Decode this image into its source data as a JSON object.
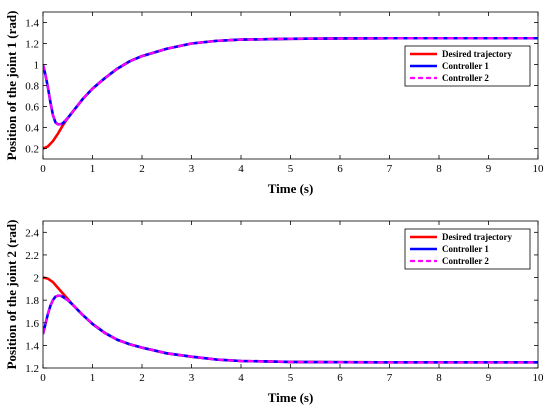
{
  "chart_data": [
    {
      "type": "line",
      "xlabel": "Time (s)",
      "ylabel": "Position of the joint 1 (rad)",
      "xlim": [
        0,
        10
      ],
      "ylim": [
        0.1,
        1.5
      ],
      "xticks": [
        0,
        1,
        2,
        3,
        4,
        5,
        6,
        7,
        8,
        9,
        10
      ],
      "yticks": [
        0.2,
        0.4,
        0.6,
        0.8,
        1,
        1.2,
        1.4
      ],
      "grid": false,
      "legend_position": "top-right",
      "series": [
        {
          "name": "Desired trajectory",
          "color": "#ff0000",
          "style": "solid",
          "x": [
            0,
            0.1,
            0.2,
            0.3,
            0.4,
            0.5,
            0.6,
            0.8,
            1.0,
            1.25,
            1.5,
            1.75,
            2.0,
            2.5,
            3.0,
            3.5,
            4.0,
            5.0,
            6.0,
            7.0,
            8.0,
            10.0
          ],
          "y": [
            0.2,
            0.22,
            0.27,
            0.34,
            0.42,
            0.49,
            0.55,
            0.67,
            0.77,
            0.87,
            0.96,
            1.03,
            1.08,
            1.15,
            1.2,
            1.225,
            1.237,
            1.245,
            1.248,
            1.25,
            1.25,
            1.25
          ]
        },
        {
          "name": "Controller 1",
          "color": "#0000ff",
          "style": "solid",
          "x": [
            0,
            0.05,
            0.1,
            0.15,
            0.2,
            0.25,
            0.3,
            0.35,
            0.4,
            0.5,
            0.6,
            0.8,
            1.0,
            1.25,
            1.5,
            1.75,
            2.0,
            2.5,
            3.0,
            3.5,
            4.0,
            5.0,
            6.0,
            7.0,
            8.0,
            10.0
          ],
          "y": [
            1.0,
            0.9,
            0.78,
            0.64,
            0.52,
            0.45,
            0.43,
            0.43,
            0.44,
            0.49,
            0.55,
            0.67,
            0.77,
            0.87,
            0.96,
            1.03,
            1.08,
            1.15,
            1.2,
            1.225,
            1.237,
            1.245,
            1.248,
            1.25,
            1.25,
            1.25
          ]
        },
        {
          "name": "Controller 2",
          "color": "#ff00ff",
          "style": "dashed",
          "x": [
            0,
            0.05,
            0.1,
            0.15,
            0.2,
            0.25,
            0.3,
            0.35,
            0.4,
            0.5,
            0.6,
            0.8,
            1.0,
            1.25,
            1.5,
            1.75,
            2.0,
            2.5,
            3.0,
            3.5,
            4.0,
            5.0,
            6.0,
            7.0,
            8.0,
            10.0
          ],
          "y": [
            1.0,
            0.9,
            0.78,
            0.64,
            0.52,
            0.45,
            0.43,
            0.43,
            0.44,
            0.49,
            0.55,
            0.67,
            0.77,
            0.87,
            0.96,
            1.03,
            1.08,
            1.15,
            1.2,
            1.225,
            1.237,
            1.245,
            1.248,
            1.25,
            1.25,
            1.25
          ]
        }
      ]
    },
    {
      "type": "line",
      "xlabel": "Time (s)",
      "ylabel": "Position of the joint 2 (rad)",
      "xlim": [
        0,
        10
      ],
      "ylim": [
        1.2,
        2.5
      ],
      "xticks": [
        0,
        1,
        2,
        3,
        4,
        5,
        6,
        7,
        8,
        9,
        10
      ],
      "yticks": [
        1.2,
        1.4,
        1.6,
        1.8,
        2,
        2.2,
        2.4
      ],
      "grid": false,
      "legend_position": "top-right",
      "series": [
        {
          "name": "Desired trajectory",
          "color": "#ff0000",
          "style": "solid",
          "x": [
            0,
            0.1,
            0.2,
            0.3,
            0.4,
            0.5,
            0.6,
            0.8,
            1.0,
            1.25,
            1.5,
            1.75,
            2.0,
            2.5,
            3.0,
            3.5,
            4.0,
            5.0,
            6.0,
            7.0,
            8.0,
            10.0
          ],
          "y": [
            2.0,
            1.99,
            1.96,
            1.91,
            1.86,
            1.81,
            1.76,
            1.67,
            1.59,
            1.51,
            1.45,
            1.41,
            1.38,
            1.33,
            1.3,
            1.275,
            1.262,
            1.254,
            1.251,
            1.25,
            1.25,
            1.25
          ]
        },
        {
          "name": "Controller 1",
          "color": "#0000ff",
          "style": "solid",
          "x": [
            0,
            0.05,
            0.1,
            0.15,
            0.2,
            0.25,
            0.3,
            0.35,
            0.4,
            0.5,
            0.6,
            0.8,
            1.0,
            1.25,
            1.5,
            1.75,
            2.0,
            2.5,
            3.0,
            3.5,
            4.0,
            5.0,
            6.0,
            7.0,
            8.0,
            10.0
          ],
          "y": [
            1.5,
            1.59,
            1.68,
            1.75,
            1.8,
            1.83,
            1.84,
            1.84,
            1.83,
            1.8,
            1.76,
            1.67,
            1.59,
            1.51,
            1.45,
            1.41,
            1.38,
            1.33,
            1.3,
            1.275,
            1.262,
            1.254,
            1.251,
            1.25,
            1.25,
            1.25
          ]
        },
        {
          "name": "Controller 2",
          "color": "#ff00ff",
          "style": "dashed",
          "x": [
            0,
            0.05,
            0.1,
            0.15,
            0.2,
            0.25,
            0.3,
            0.35,
            0.4,
            0.5,
            0.6,
            0.8,
            1.0,
            1.25,
            1.5,
            1.75,
            2.0,
            2.5,
            3.0,
            3.5,
            4.0,
            5.0,
            6.0,
            7.0,
            8.0,
            10.0
          ],
          "y": [
            1.5,
            1.59,
            1.68,
            1.75,
            1.8,
            1.83,
            1.84,
            1.84,
            1.83,
            1.8,
            1.76,
            1.67,
            1.59,
            1.51,
            1.45,
            1.41,
            1.38,
            1.33,
            1.3,
            1.275,
            1.262,
            1.254,
            1.251,
            1.25,
            1.25,
            1.25
          ]
        }
      ]
    }
  ]
}
